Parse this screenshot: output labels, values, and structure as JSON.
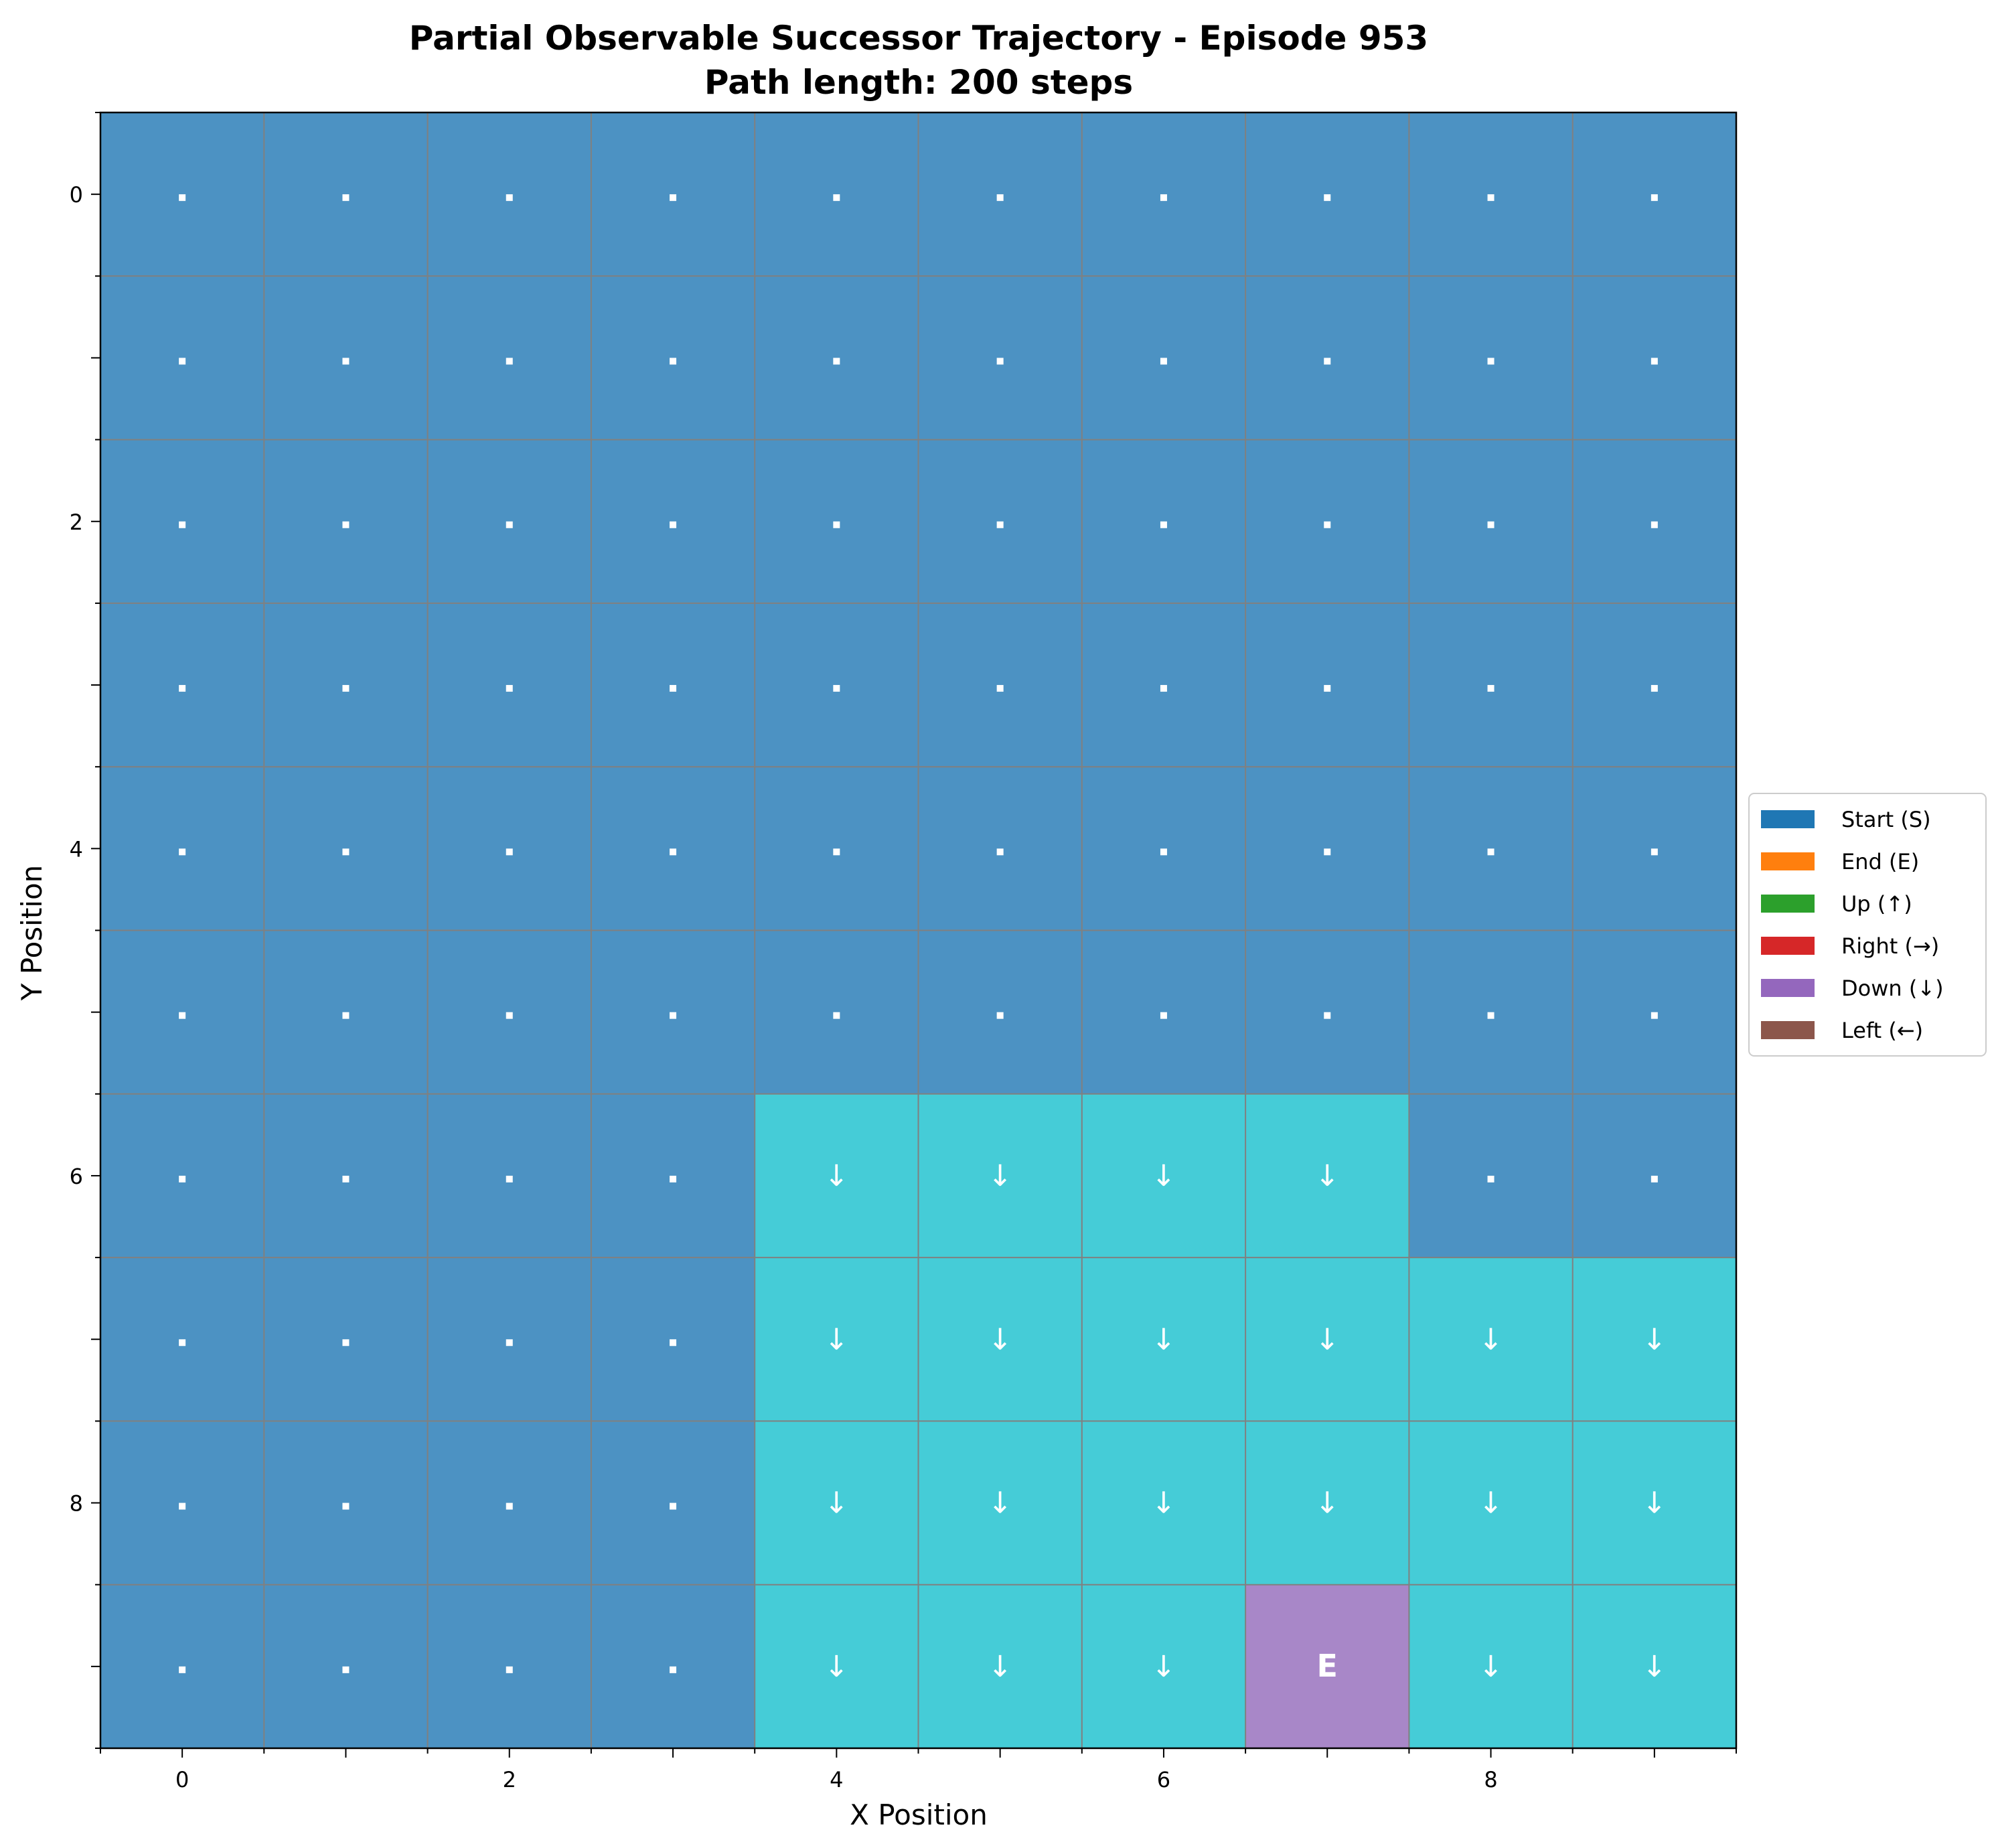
{
  "chart_data": {
    "type": "heatmap",
    "title_line1": "Partial Observable Successor Trajectory - Episode 953",
    "title_line2": "Path length: 200 steps",
    "xlabel": "X Position",
    "ylabel": "Y Position",
    "x_ticks": [
      "0",
      "2",
      "4",
      "6",
      "8"
    ],
    "y_ticks": [
      "0",
      "2",
      "4",
      "6",
      "8"
    ],
    "grid": true,
    "legend_position": "center-right",
    "legend": [
      {
        "label": "Start (S)",
        "color": "#1f77b4"
      },
      {
        "label": "End (E)",
        "color": "#ff7f0e"
      },
      {
        "label": "Up (↑)",
        "color": "#2ca02c"
      },
      {
        "label": "Right (→)",
        "color": "#d62728"
      },
      {
        "label": "Down (↓)",
        "color": "#9467bd"
      },
      {
        "label": "Left (←)",
        "color": "#8c564b"
      }
    ],
    "cell_colors": {
      "unvisited": "#4c92c3",
      "down": "#45ccd7",
      "end": "#a887c8"
    },
    "cells": [
      [
        ".",
        ".",
        ".",
        ".",
        ".",
        ".",
        ".",
        ".",
        ".",
        "."
      ],
      [
        ".",
        ".",
        ".",
        ".",
        ".",
        ".",
        ".",
        ".",
        ".",
        "."
      ],
      [
        ".",
        ".",
        ".",
        ".",
        ".",
        ".",
        ".",
        ".",
        ".",
        "."
      ],
      [
        ".",
        ".",
        ".",
        ".",
        ".",
        ".",
        ".",
        ".",
        ".",
        "."
      ],
      [
        ".",
        ".",
        ".",
        ".",
        ".",
        ".",
        ".",
        ".",
        ".",
        "."
      ],
      [
        ".",
        ".",
        ".",
        ".",
        ".",
        ".",
        ".",
        ".",
        ".",
        "."
      ],
      [
        ".",
        ".",
        ".",
        ".",
        "↓",
        "↓",
        "↓",
        "↓",
        ".",
        "."
      ],
      [
        ".",
        ".",
        ".",
        ".",
        "↓",
        "↓",
        "↓",
        "↓",
        "↓",
        "↓"
      ],
      [
        ".",
        ".",
        ".",
        ".",
        "↓",
        "↓",
        "↓",
        "↓",
        "↓",
        "↓"
      ],
      [
        ".",
        ".",
        ".",
        ".",
        "↓",
        "↓",
        "↓",
        "E",
        "↓",
        "↓"
      ]
    ]
  }
}
